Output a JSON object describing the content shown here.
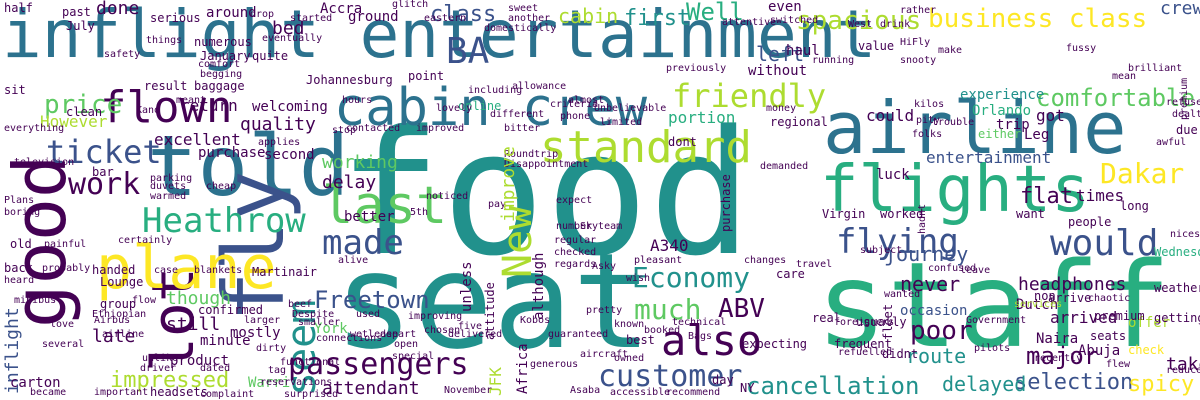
{
  "palette": {
    "dark_purple": "#440154",
    "indigo": "#3b528b",
    "steel_blue": "#2c728e",
    "teal": "#21918c",
    "sea_green": "#28ae80",
    "green": "#5ec962",
    "lime": "#addc30",
    "yellow": "#fde725"
  },
  "words": {
    "inflight_entertainment": "inflight entertainment",
    "food": "food",
    "seat": "seat",
    "staff": "staff",
    "airline": "airline",
    "told": "told",
    "good": "good",
    "fly": "fly",
    "flights": "flights",
    "cabin_crew": "cabin crew",
    "standard": "standard",
    "plane": "plane",
    "flown": "flown",
    "ba": "BA",
    "last": "last",
    "lot": "lot",
    "heathrow": "Heathrow",
    "customer": "customer",
    "passengers": "passengers",
    "also": "also",
    "would": "would",
    "flying": "flying",
    "seem": "seem",
    "made": "made",
    "business_class": "business class",
    "friendly": "friendly",
    "ticket": "ticket",
    "work": "work",
    "economy": "Economy",
    "much": "much",
    "abv": "ABV",
    "new": "New",
    "price": "price",
    "dakar": "Dakar",
    "freetown": "Freetown",
    "cancellation": "cancellation",
    "comfortable": "comfortable",
    "spacious": "spacious",
    "well": "Well",
    "first": "first",
    "cabin": "cabin",
    "class": "class",
    "done": "done",
    "bed": "bed",
    "ground": "ground",
    "never": "never",
    "journey": "journey",
    "headphones": "headphones",
    "poor": "poor",
    "major": "major",
    "route": "route",
    "selection": "selection",
    "delayed": "delayed",
    "impressed": "impressed",
    "attendant": "attendant",
    "still": "still",
    "though": "though",
    "late": "late",
    "inflight": "inflight",
    "quality": "quality",
    "return": "return",
    "however": "However",
    "excellent": "excellent",
    "working": "working",
    "delay": "delay",
    "better": "better",
    "portion": "portion",
    "could": "could",
    "left": "left",
    "improve": "improve",
    "a340": "A340",
    "crew": "crew",
    "entertainment": "entertainment",
    "flat": "flat",
    "times": "times",
    "occasion": "occasion",
    "arrived": "arrived",
    "spicy": "spicy",
    "take": "take",
    "lounge": "Lounge",
    "handed": "handed",
    "confirmed": "confirmed",
    "product": "product",
    "minute": "minute",
    "mostly": "mostly",
    "york": "York",
    "warri": "Warri",
    "jfk": "JFK",
    "africa": "Africa",
    "although": "although",
    "unless": "unless",
    "attitude": "attitude",
    "dutch": "Dutch",
    "non": "non",
    "naira": "Naira",
    "abuja": "Abuja",
    "seats": "seats",
    "premium": "premium",
    "usually": "usually",
    "didnt": "didnt",
    "fleet": "fleet",
    "offer": "offer",
    "check": "check",
    "weather": "weather",
    "getting": "getting",
    "purchase": "purchase",
    "second": "second",
    "group": "group",
    "larger": "larger",
    "connections": "connections",
    "luck": "luck",
    "virgin": "Virgin",
    "worked": "worked",
    "hadnt": "hadnt",
    "want": "want",
    "people": "people",
    "wednesday": "Wednesday",
    "long": "long",
    "experience": "experience",
    "orlando": "Orlando",
    "trip": "trip",
    "got": "got",
    "leg": "Leg",
    "either": "either",
    "due": "due",
    "regional": "regional",
    "welcoming": "welcoming",
    "johannesburg": "Johannesburg",
    "baggage": "baggage",
    "point": "point",
    "accra": "Accra",
    "numerous": "numerous",
    "january": "January",
    "quite": "quite",
    "result": "result",
    "past": "past",
    "half": "half",
    "july": "July",
    "around": "around",
    "serious": "serious",
    "bring": "bring",
    "even": "even",
    "haul": "haul",
    "without": "without",
    "value": "value",
    "hifly": "HiFly",
    "rather": "rather",
    "west": "West",
    "drink": "drink",
    "skyteam": "Skyteam",
    "kobos": "Kobos",
    "asky": "Asky",
    "five": "five",
    "frequent": "frequent",
    "foreigners": "foreigners",
    "government": "Government",
    "arrive": "arrive",
    "real": "real",
    "care": "care",
    "travel": "travel",
    "booked": "booked",
    "depart": "depart",
    "improving": "improving",
    "used": "used",
    "dirty": "dirty",
    "tag": "tag",
    "ethiopian": "Ethiopian",
    "airline_small": "airline",
    "several": "several",
    "carton": "carton",
    "became": "became",
    "martinair": "Martinair",
    "blankets": "blankets",
    "case": "case",
    "bar": "bar",
    "back": "back",
    "heard": "heard",
    "old": "old",
    "probably": "probably",
    "television": "television",
    "plans": "Plans",
    "boring": "boring",
    "clean": "clean",
    "kano": "Kano",
    "stop": "stop",
    "noticed": "noticed",
    "5th": "5th",
    "pay": "pay",
    "expect": "expect",
    "number": "number",
    "regular": "regular",
    "checked": "checked",
    "regards": "regards",
    "pretty": "pretty",
    "bags": "Bags",
    "expecting": "expecting",
    "day": "day",
    "ny": "NY",
    "november": "November",
    "asaba": "Asaba",
    "accessible": "accessible",
    "recommend": "recommend",
    "headsets": "headsets",
    "complaint": "complaint",
    "important": "important",
    "painful": "painful",
    "refused": "refused",
    "dealt": "dealt",
    "nicest": "nicest",
    "reduced": "reduced",
    "flew": "flew",
    "known": "known",
    "technical": "technical",
    "best": "best",
    "five_small": "five",
    "wish": "wish",
    "flow": "flow",
    "minibus": "minibus",
    "leave": "leave",
    "online": "online",
    "including": "including",
    "different": "different",
    "criteria": "criteria",
    "phone": "phone",
    "unbelievable": "Unbelievable",
    "previously": "previously",
    "allowance": "allowance",
    "almost": "almost",
    "limited": "limited",
    "dont": "dont",
    "money": "money",
    "fussy": "fussy",
    "make": "make",
    "mean": "mean",
    "brilliant": "brilliant",
    "comfort": "comfort",
    "begging": "begging",
    "safety": "safety",
    "things": "things",
    "drop": "drop",
    "started": "started",
    "sweet": "sweet",
    "another": "another",
    "domestically": "domestically",
    "eventually": "eventually",
    "eastern": "eastern",
    "switched": "switched",
    "attentive": "attentive",
    "running": "running",
    "snooty": "snooty",
    "trouble": "trouble",
    "pity": "pity",
    "folks": "folks",
    "refuelled": "refuelled",
    "demanded": "demanded",
    "changes": "changes",
    "chosen": "chosen",
    "open": "open",
    "delivered": "delivered",
    "guaranteed": "guaranteed",
    "pleasant": "pleasant",
    "aircraft": "aircraft",
    "generous": "generous",
    "special": "special",
    "owned": "owned",
    "subject": "subject",
    "confused": "confused",
    "chaotic": "chaotic",
    "recently": "recently",
    "services": "services",
    "wanted": "wanted",
    "pilots": "pilots",
    "unlike": "unlike",
    "driver": "driver",
    "despite": "Despite",
    "wetlease": "wetlease",
    "functional": "functional",
    "beef": "beef",
    "alive": "alive",
    "mean_small": "meant",
    "sit": "sit",
    "everything": "everything",
    "cheap": "cheap",
    "parking": "parking",
    "duvets": "duvets",
    "warmed": "warmed",
    "applies": "applies",
    "smaller": "smaller",
    "reservations": "reservations",
    "surprised": "surprised",
    "dated": "dated",
    "airbus": "Airbus",
    "love": "love",
    "certainly": "certainly",
    "glitch": "glitch",
    "kilos": "kilos",
    "trip_small": "Roundtrip",
    "bitter": "bitter",
    "hours": "hours",
    "disappointment": "Disappointment",
    "lovely": "lovely",
    "improved": "improved",
    "contacted": "contacted",
    "late_small": "awful"
  }
}
